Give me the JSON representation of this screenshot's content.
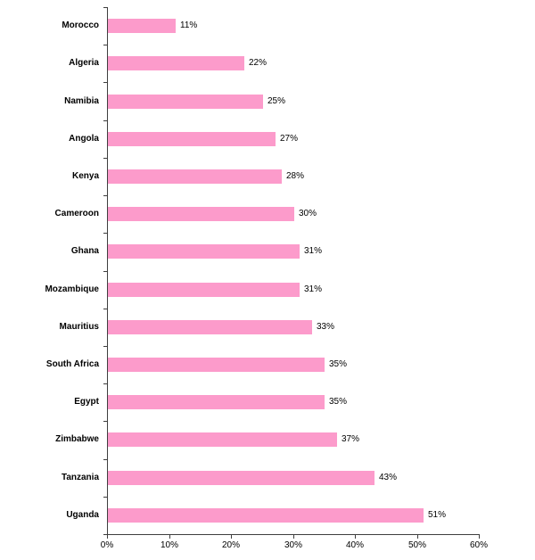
{
  "chart_data": {
    "type": "bar",
    "orientation": "horizontal",
    "title": "",
    "xlabel": "",
    "ylabel": "",
    "categories": [
      "Morocco",
      "Algeria",
      "Namibia",
      "Angola",
      "Kenya",
      "Cameroon",
      "Ghana",
      "Mozambique",
      "Mauritius",
      "South Africa",
      "Egypt",
      "Zimbabwe",
      "Tanzania",
      "Uganda"
    ],
    "values": [
      11,
      22,
      25,
      27,
      28,
      30,
      31,
      31,
      33,
      35,
      35,
      37,
      43,
      51
    ],
    "value_labels": [
      "11%",
      "22%",
      "25%",
      "27%",
      "28%",
      "30%",
      "31%",
      "31%",
      "33%",
      "35%",
      "35%",
      "37%",
      "43%",
      "51%"
    ],
    "x_tick_labels": [
      "0%",
      "10%",
      "20%",
      "30%",
      "40%",
      "50%",
      "60%"
    ],
    "x_tick_values": [
      0,
      10,
      20,
      30,
      40,
      50,
      60
    ],
    "xlim": [
      0,
      60
    ],
    "grid": false,
    "legend": "none",
    "bar_color": "#FC9BCB",
    "axis_color": "#3f3f3f",
    "text_color": "#000000"
  }
}
